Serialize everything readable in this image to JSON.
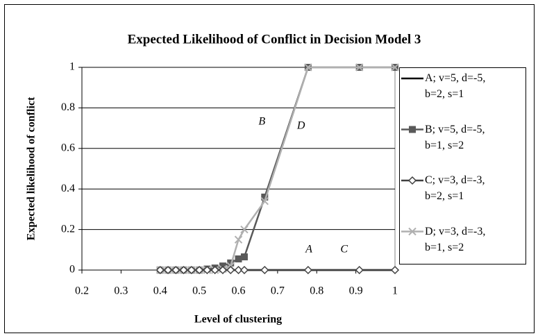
{
  "chart_data": {
    "type": "line",
    "title": "Expected Likelihood of Conflict in Decision Model 3",
    "xlabel": "Level of clustering",
    "ylabel": "Expected likelihood of conflict",
    "x": [
      0.4,
      0.42,
      0.44,
      0.46,
      0.48,
      0.5,
      0.52,
      0.54,
      0.56,
      0.58,
      0.6,
      0.615,
      0.667,
      0.778,
      0.909,
      1
    ],
    "series": [
      {
        "name": "A; v=5, d=-5, b=2, s=1",
        "color": "#000000",
        "marker": "none",
        "values": [
          0,
          0,
          0,
          0,
          0,
          0,
          0,
          0,
          0,
          0,
          0,
          0,
          0,
          0,
          0,
          0
        ]
      },
      {
        "name": "B; v=5, d=-5, b=1, s=2",
        "color": "#595959",
        "marker": "square",
        "values": [
          0,
          0,
          0,
          0,
          0,
          0,
          0.005,
          0.01,
          0.02,
          0.035,
          0.055,
          0.065,
          0.36,
          1,
          1,
          1
        ]
      },
      {
        "name": "C; v=3, d=-3, b=2, s=1",
        "color": "#404040",
        "marker": "diamond",
        "values": [
          0,
          0,
          0,
          0,
          0,
          0,
          0,
          0,
          0,
          0,
          0,
          0,
          0,
          0,
          0,
          0
        ]
      },
      {
        "name": "D; v=3, d=-3, b=1, s=2",
        "color": "#b0b0b0",
        "marker": "x",
        "values": [
          0,
          0,
          0,
          0,
          0,
          0,
          0,
          0,
          0.005,
          0.02,
          0.15,
          0.2,
          0.34,
          1,
          1,
          1
        ]
      }
    ],
    "annotations": [
      {
        "text": "B",
        "x": 0.66,
        "y": 0.73
      },
      {
        "text": "D",
        "x": 0.76,
        "y": 0.71
      },
      {
        "text": "A",
        "x": 0.78,
        "y": 0.1
      },
      {
        "text": "C",
        "x": 0.87,
        "y": 0.1
      }
    ],
    "xlim": [
      0.2,
      1
    ],
    "xticks": [
      0.2,
      0.3,
      0.4,
      0.5,
      0.6,
      0.7,
      0.8,
      0.9,
      1
    ],
    "ylim": [
      0,
      1
    ],
    "yticks": [
      0,
      0.2,
      0.4,
      0.6,
      0.8,
      1
    ],
    "grid": true,
    "legend": "right"
  }
}
